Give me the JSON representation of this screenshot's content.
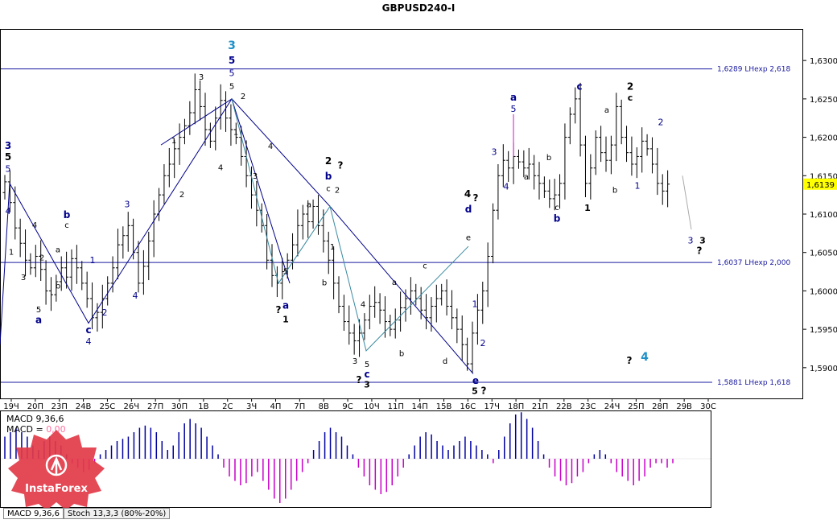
{
  "window": {
    "title": "GBPUSD240-I"
  },
  "colors": {
    "accent_blue": "#00008b",
    "wave_cyan": "#1e90c8",
    "macd_pos": "#0000a0",
    "macd_neg": "#c800c8",
    "level_line": "#1a1aa0"
  },
  "chart_data": {
    "type": "ohlc",
    "symbol": "GBPUSD240-I",
    "ylim": [
      1.586,
      1.634
    ],
    "y_ticks": [
      "1,6300",
      "1,6250",
      "1,6200",
      "1,6150",
      "1,6100",
      "1,6050",
      "1,6000",
      "1,5950",
      "1,5900"
    ],
    "current_price": "1,6139",
    "x_ticks": [
      "19Ч",
      "20П",
      "23П",
      "24В",
      "25С",
      "26Ч",
      "27П",
      "30П",
      "1В",
      "2С",
      "3Ч",
      "4П",
      "7П",
      "8В",
      "9С",
      "10Ч",
      "11П",
      "14П",
      "15В",
      "16С",
      "17Ч",
      "18П",
      "21П",
      "22В",
      "23С",
      "24Ч",
      "25П",
      "28П",
      "29В",
      "30С"
    ],
    "levels": [
      {
        "value": 1.6289,
        "label": "1,6289 LHexp 2,618"
      },
      {
        "value": 1.6037,
        "label": "1,6037 LHexp 2,000"
      },
      {
        "value": 1.5881,
        "label": "1,5881 LHexp 1,618"
      }
    ],
    "price_path": [
      1.6128,
      1.6142,
      1.6115,
      1.6082,
      1.6062,
      1.604,
      1.603,
      1.6045,
      1.6028,
      1.6,
      1.5995,
      1.6012,
      1.603,
      1.6018,
      1.6042,
      1.603,
      1.601,
      1.599,
      1.5965,
      1.5972,
      1.599,
      1.601,
      1.603,
      1.606,
      1.6072,
      1.6085,
      1.605,
      1.601,
      1.6032,
      1.6065,
      1.61,
      1.6125,
      1.615,
      1.6165,
      1.6185,
      1.62,
      1.6215,
      1.6232,
      1.6262,
      1.624,
      1.621,
      1.6195,
      1.6225,
      1.6248,
      1.6225,
      1.621,
      1.62,
      1.6175,
      1.615,
      1.6125,
      1.6105,
      1.6085,
      1.604,
      1.602,
      1.601,
      1.6025,
      1.604,
      1.606,
      1.6085,
      1.61,
      1.609,
      1.611,
      1.6085,
      1.6065,
      1.604,
      1.601,
      1.598,
      1.596,
      1.5945,
      1.5935,
      1.5945,
      1.5962,
      1.598,
      1.5985,
      1.5975,
      1.596,
      1.595,
      1.5962,
      1.5978,
      1.599,
      1.6,
      1.599,
      1.5975,
      1.5965,
      1.598,
      1.599,
      1.6,
      1.598,
      1.5965,
      1.595,
      1.593,
      1.5905,
      1.5945,
      1.5975,
      1.6,
      1.6045,
      1.6105,
      1.615,
      1.617,
      1.616,
      1.6175,
      1.6168,
      1.616,
      1.6165,
      1.615,
      1.614,
      1.613,
      1.612,
      1.6125,
      1.614,
      1.62,
      1.623,
      1.625,
      1.619,
      1.614,
      1.616,
      1.62,
      1.618,
      1.617,
      1.619,
      1.624,
      1.62,
      1.618,
      1.6165,
      1.6175,
      1.6195,
      1.6185,
      1.6165,
      1.614,
      1.613,
      1.6139
    ],
    "wave_lines": [
      {
        "color": "#00008b",
        "points": [
          [
            0,
            1.593
          ],
          [
            12,
            1.614
          ],
          [
            110,
            1.5958
          ],
          [
            288,
            1.625
          ],
          [
            410,
            1.611
          ],
          [
            588,
            1.5892
          ]
        ]
      },
      {
        "color": "#00008b",
        "points": [
          [
            200,
            1.619
          ],
          [
            288,
            1.625
          ],
          [
            360,
            1.601
          ]
        ]
      },
      {
        "color": "#3a8aa0",
        "points": [
          [
            288,
            1.625
          ],
          [
            346,
            1.601
          ],
          [
            410,
            1.611
          ],
          [
            455,
            1.5922
          ],
          [
            582,
            1.6058
          ]
        ]
      }
    ],
    "annotations": [
      {
        "x": 10,
        "y": 1.6185,
        "text": "3",
        "color": "#00008b",
        "size": 12,
        "bold": true
      },
      {
        "x": 10,
        "y": 1.617,
        "text": "5",
        "color": "#000000",
        "size": 12,
        "bold": true
      },
      {
        "x": 10,
        "y": 1.6155,
        "text": "5",
        "color": "#00008b",
        "size": 11,
        "bold": false
      },
      {
        "x": 10,
        "y": 1.61,
        "text": "4",
        "color": "#00008b",
        "size": 11,
        "bold": false
      },
      {
        "x": 288,
        "y": 1.6315,
        "text": "3",
        "color": "#1e90c8",
        "size": 14,
        "bold": true
      },
      {
        "x": 288,
        "y": 1.6296,
        "text": "5",
        "color": "#00008b",
        "size": 12,
        "bold": true
      },
      {
        "x": 288,
        "y": 1.628,
        "text": "5",
        "color": "#00008b",
        "size": 11,
        "bold": false
      },
      {
        "x": 288,
        "y": 1.6263,
        "text": "5",
        "color": "#000000",
        "size": 10,
        "bold": false
      },
      {
        "x": 250,
        "y": 1.6275,
        "text": "3",
        "color": "#000000",
        "size": 10,
        "bold": false
      },
      {
        "x": 302,
        "y": 1.625,
        "text": "2",
        "color": "#000000",
        "size": 10,
        "bold": false
      },
      {
        "x": 293,
        "y": 1.6203,
        "text": "1",
        "color": "#000000",
        "size": 10,
        "bold": false
      },
      {
        "x": 216,
        "y": 1.6192,
        "text": "1",
        "color": "#000000",
        "size": 10,
        "bold": false
      },
      {
        "x": 274,
        "y": 1.6157,
        "text": "4",
        "color": "#000000",
        "size": 10,
        "bold": false
      },
      {
        "x": 226,
        "y": 1.6122,
        "text": "2",
        "color": "#000000",
        "size": 10,
        "bold": false
      },
      {
        "x": 158,
        "y": 1.6109,
        "text": "3",
        "color": "#00008b",
        "size": 11,
        "bold": false
      },
      {
        "x": 168,
        "y": 1.599,
        "text": "4",
        "color": "#00008b",
        "size": 11,
        "bold": false
      },
      {
        "x": 130,
        "y": 1.5968,
        "text": "2",
        "color": "#00008b",
        "size": 11,
        "bold": false
      },
      {
        "x": 115,
        "y": 1.6036,
        "text": "1",
        "color": "#00008b",
        "size": 11,
        "bold": false
      },
      {
        "x": 83,
        "y": 1.6095,
        "text": "b",
        "color": "#00008b",
        "size": 12,
        "bold": true
      },
      {
        "x": 83,
        "y": 1.6082,
        "text": "c",
        "color": "#000000",
        "size": 10,
        "bold": false
      },
      {
        "x": 72,
        "y": 1.605,
        "text": "a",
        "color": "#000000",
        "size": 10,
        "bold": false
      },
      {
        "x": 72,
        "y": 1.6003,
        "text": "b",
        "color": "#000000",
        "size": 10,
        "bold": false
      },
      {
        "x": 43,
        "y": 1.6082,
        "text": "4",
        "color": "#000000",
        "size": 10,
        "bold": false
      },
      {
        "x": 14,
        "y": 1.6047,
        "text": "1",
        "color": "#000000",
        "size": 10,
        "bold": false
      },
      {
        "x": 29,
        "y": 1.6014,
        "text": "3",
        "color": "#000000",
        "size": 10,
        "bold": false
      },
      {
        "x": 52,
        "y": 1.604,
        "text": "2",
        "color": "#000000",
        "size": 10,
        "bold": false
      },
      {
        "x": 48,
        "y": 1.5972,
        "text": "5",
        "color": "#000000",
        "size": 10,
        "bold": false
      },
      {
        "x": 48,
        "y": 1.5958,
        "text": "a",
        "color": "#00008b",
        "size": 12,
        "bold": true
      },
      {
        "x": 110,
        "y": 1.5945,
        "text": "c",
        "color": "#00008b",
        "size": 12,
        "bold": true
      },
      {
        "x": 110,
        "y": 1.593,
        "text": "4",
        "color": "#00008b",
        "size": 11,
        "bold": false
      },
      {
        "x": 336,
        "y": 1.6185,
        "text": "4",
        "color": "#000000",
        "size": 10,
        "bold": false
      },
      {
        "x": 317,
        "y": 1.6146,
        "text": "3",
        "color": "#000000",
        "size": 10,
        "bold": false
      },
      {
        "x": 355,
        "y": 1.6022,
        "text": "5",
        "color": "#000000",
        "size": 10,
        "bold": false
      },
      {
        "x": 346,
        "y": 1.5971,
        "text": "?",
        "color": "#000000",
        "size": 12,
        "bold": true
      },
      {
        "x": 355,
        "y": 1.5977,
        "text": "a",
        "color": "#00008b",
        "size": 12,
        "bold": true
      },
      {
        "x": 355,
        "y": 1.5959,
        "text": "1",
        "color": "#000000",
        "size": 11,
        "bold": true
      },
      {
        "x": 384,
        "y": 1.6109,
        "text": "a",
        "color": "#000000",
        "size": 10,
        "bold": false
      },
      {
        "x": 408,
        "y": 1.6165,
        "text": "2",
        "color": "#000000",
        "size": 12,
        "bold": true
      },
      {
        "x": 423,
        "y": 1.6159,
        "text": "?",
        "color": "#000000",
        "size": 12,
        "bold": true
      },
      {
        "x": 408,
        "y": 1.6145,
        "text": "b",
        "color": "#00008b",
        "size": 12,
        "bold": true
      },
      {
        "x": 408,
        "y": 1.613,
        "text": "c",
        "color": "#000000",
        "size": 10,
        "bold": false
      },
      {
        "x": 419,
        "y": 1.6128,
        "text": "2",
        "color": "#000000",
        "size": 10,
        "bold": false
      },
      {
        "x": 413,
        "y": 1.6054,
        "text": "1",
        "color": "#000000",
        "size": 10,
        "bold": false
      },
      {
        "x": 403,
        "y": 1.6007,
        "text": "b",
        "color": "#000000",
        "size": 10,
        "bold": false
      },
      {
        "x": 451,
        "y": 1.5979,
        "text": "4",
        "color": "#000000",
        "size": 10,
        "bold": false
      },
      {
        "x": 441,
        "y": 1.5905,
        "text": "3",
        "color": "#000000",
        "size": 10,
        "bold": false
      },
      {
        "x": 456,
        "y": 1.5901,
        "text": "5",
        "color": "#000000",
        "size": 10,
        "bold": false
      },
      {
        "x": 456,
        "y": 1.5887,
        "text": "c",
        "color": "#00008b",
        "size": 12,
        "bold": true
      },
      {
        "x": 446,
        "y": 1.588,
        "text": "?",
        "color": "#000000",
        "size": 12,
        "bold": true
      },
      {
        "x": 456,
        "y": 1.5874,
        "text": "3",
        "color": "#000000",
        "size": 11,
        "bold": true
      },
      {
        "x": 490,
        "y": 1.6008,
        "text": "a",
        "color": "#000000",
        "size": 10,
        "bold": false
      },
      {
        "x": 499,
        "y": 1.5915,
        "text": "b",
        "color": "#000000",
        "size": 10,
        "bold": false
      },
      {
        "x": 528,
        "y": 1.6029,
        "text": "c",
        "color": "#000000",
        "size": 10,
        "bold": false
      },
      {
        "x": 553,
        "y": 1.5905,
        "text": "d",
        "color": "#000000",
        "size": 10,
        "bold": false
      },
      {
        "x": 582,
        "y": 1.6066,
        "text": "e",
        "color": "#000000",
        "size": 10,
        "bold": false
      },
      {
        "x": 582,
        "y": 1.6102,
        "text": "d",
        "color": "#00008b",
        "size": 12,
        "bold": true
      },
      {
        "x": 581,
        "y": 1.6122,
        "text": "4",
        "color": "#000000",
        "size": 12,
        "bold": true
      },
      {
        "x": 591,
        "y": 1.6117,
        "text": "?",
        "color": "#000000",
        "size": 12,
        "bold": true
      },
      {
        "x": 590,
        "y": 1.5979,
        "text": "1",
        "color": "#00008b",
        "size": 11,
        "bold": false
      },
      {
        "x": 600,
        "y": 1.5928,
        "text": "2",
        "color": "#00008b",
        "size": 11,
        "bold": false
      },
      {
        "x": 591,
        "y": 1.5879,
        "text": "e",
        "color": "#00008b",
        "size": 12,
        "bold": true
      },
      {
        "x": 590,
        "y": 1.5866,
        "text": "5",
        "color": "#000000",
        "size": 11,
        "bold": true
      },
      {
        "x": 601,
        "y": 1.5866,
        "text": "?",
        "color": "#000000",
        "size": 12,
        "bold": true
      },
      {
        "x": 638,
        "y": 1.6248,
        "text": "a",
        "color": "#00008b",
        "size": 12,
        "bold": true
      },
      {
        "x": 638,
        "y": 1.6233,
        "text": "5",
        "color": "#00008b",
        "size": 11,
        "bold": false
      },
      {
        "x": 614,
        "y": 1.6177,
        "text": "3",
        "color": "#00008b",
        "size": 11,
        "bold": false
      },
      {
        "x": 629,
        "y": 1.6132,
        "text": "4",
        "color": "#00008b",
        "size": 11,
        "bold": false
      },
      {
        "x": 654,
        "y": 1.6145,
        "text": "a",
        "color": "#000000",
        "size": 10,
        "bold": false
      },
      {
        "x": 682,
        "y": 1.617,
        "text": "b",
        "color": "#000000",
        "size": 10,
        "bold": false
      },
      {
        "x": 692,
        "y": 1.6105,
        "text": "c",
        "color": "#000000",
        "size": 10,
        "bold": false
      },
      {
        "x": 692,
        "y": 1.609,
        "text": "b",
        "color": "#00008b",
        "size": 12,
        "bold": true
      },
      {
        "x": 720,
        "y": 1.6262,
        "text": "c",
        "color": "#00008b",
        "size": 12,
        "bold": true
      },
      {
        "x": 730,
        "y": 1.6104,
        "text": "1",
        "color": "#000000",
        "size": 11,
        "bold": true
      },
      {
        "x": 754,
        "y": 1.6232,
        "text": "a",
        "color": "#000000",
        "size": 10,
        "bold": false
      },
      {
        "x": 764,
        "y": 1.6128,
        "text": "b",
        "color": "#000000",
        "size": 10,
        "bold": false
      },
      {
        "x": 783,
        "y": 1.6262,
        "text": "2",
        "color": "#000000",
        "size": 12,
        "bold": true
      },
      {
        "x": 783,
        "y": 1.6248,
        "text": "c",
        "color": "#000000",
        "size": 11,
        "bold": true
      },
      {
        "x": 821,
        "y": 1.6216,
        "text": "2",
        "color": "#00008b",
        "size": 11,
        "bold": false
      },
      {
        "x": 792,
        "y": 1.6133,
        "text": "1",
        "color": "#00008b",
        "size": 11,
        "bold": false
      },
      {
        "x": 858,
        "y": 1.6062,
        "text": "3",
        "color": "#00008b",
        "size": 11,
        "bold": false
      },
      {
        "x": 873,
        "y": 1.6062,
        "text": "3",
        "color": "#000000",
        "size": 11,
        "bold": true
      },
      {
        "x": 869,
        "y": 1.6048,
        "text": "?",
        "color": "#000000",
        "size": 12,
        "bold": true
      },
      {
        "x": 782,
        "y": 1.5905,
        "text": "?",
        "color": "#000000",
        "size": 12,
        "bold": true
      },
      {
        "x": 801,
        "y": 1.5909,
        "text": "4",
        "color": "#1e90c8",
        "size": 14,
        "bold": true
      }
    ],
    "macd": {
      "legend_1": "MACD 9,36,6",
      "legend_2_label": "MACD = ",
      "legend_2_value": "0,00",
      "values": [
        0.5,
        0.6,
        0.7,
        0.6,
        0.5,
        0.3,
        0.2,
        0.4,
        0.5,
        0.4,
        0.3,
        0.1,
        -0.1,
        -0.2,
        -0.3,
        -0.25,
        -0.1,
        0.1,
        0.2,
        0.3,
        0.4,
        0.45,
        0.5,
        0.6,
        0.7,
        0.75,
        0.7,
        0.6,
        0.4,
        0.2,
        0.3,
        0.6,
        0.8,
        0.9,
        0.8,
        0.7,
        0.5,
        0.3,
        0.1,
        -0.2,
        -0.4,
        -0.5,
        -0.6,
        -0.55,
        -0.4,
        -0.3,
        -0.5,
        -0.7,
        -0.9,
        -1.0,
        -0.9,
        -0.7,
        -0.5,
        -0.3,
        -0.1,
        0.2,
        0.4,
        0.6,
        0.7,
        0.6,
        0.5,
        0.3,
        0.1,
        -0.2,
        -0.4,
        -0.6,
        -0.7,
        -0.8,
        -0.75,
        -0.6,
        -0.4,
        -0.2,
        0.1,
        0.3,
        0.5,
        0.6,
        0.55,
        0.4,
        0.3,
        0.2,
        0.3,
        0.4,
        0.5,
        0.4,
        0.3,
        0.2,
        0.1,
        -0.1,
        0.2,
        0.5,
        0.8,
        1.0,
        1.05,
        0.9,
        0.7,
        0.4,
        0.1,
        -0.2,
        -0.4,
        -0.5,
        -0.6,
        -0.55,
        -0.4,
        -0.3,
        -0.1,
        0.1,
        0.2,
        0.1,
        -0.1,
        -0.3,
        -0.4,
        -0.5,
        -0.6,
        -0.5,
        -0.4,
        -0.2,
        -0.1,
        -0.1,
        -0.2,
        -0.1
      ]
    }
  },
  "watermark": {
    "brand": "InstaForex"
  },
  "tabs": [
    {
      "label": "MACD 9,36,6"
    },
    {
      "label": "Stoch 13,3,3 (80%-20%)"
    }
  ]
}
